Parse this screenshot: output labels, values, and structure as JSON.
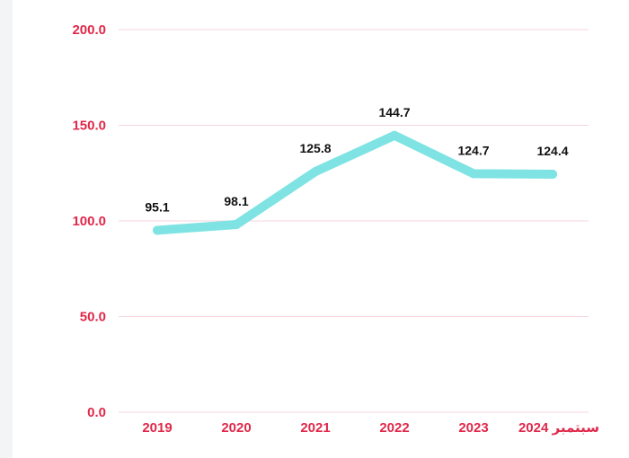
{
  "chart_data": {
    "type": "line",
    "categories": [
      "2019",
      "2020",
      "2021",
      "2022",
      "2023",
      "سبتمبر 2024"
    ],
    "series": [
      {
        "values": [
          95.1,
          98.1,
          125.8,
          144.7,
          124.7,
          124.4
        ]
      }
    ],
    "data_labels": [
      "95.1",
      "98.1",
      "125.8",
      "144.7",
      "124.7",
      "124.4"
    ],
    "y_ticks": [
      "0.0",
      "50.0",
      "100.0",
      "150.0",
      "200.0"
    ],
    "ylim": [
      0,
      200
    ],
    "grid": true,
    "legend": "none",
    "colors": {
      "line": "#7fe3e3",
      "tick_text": "#e0284a",
      "grid": "#f6d6dc",
      "label_text": "#111111"
    }
  }
}
